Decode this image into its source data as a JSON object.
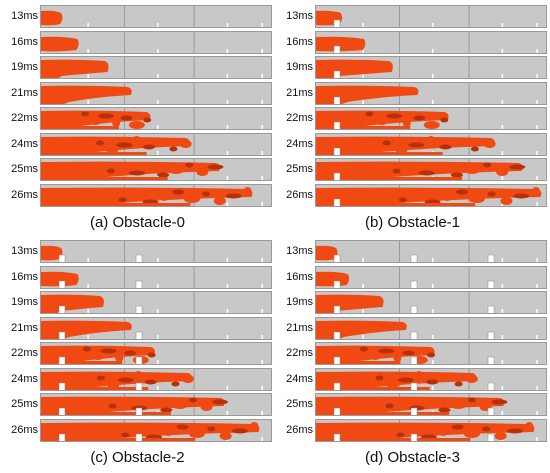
{
  "panels": [
    {
      "caption": "(a) Obstacle-0",
      "obstacles": 0,
      "times": [
        "13ms",
        "16ms",
        "19ms",
        "21ms",
        "22ms",
        "24ms",
        "25ms",
        "26ms"
      ],
      "flame_reach": [
        0.1,
        0.17,
        0.3,
        0.4,
        0.48,
        0.65,
        0.78,
        0.92
      ]
    },
    {
      "caption": "(b) Obstacle-1",
      "obstacles": 1,
      "times": [
        "13ms",
        "16ms",
        "19ms",
        "21ms",
        "22ms",
        "24ms",
        "25ms",
        "26ms"
      ],
      "flame_reach": [
        0.12,
        0.22,
        0.34,
        0.45,
        0.58,
        0.78,
        0.9,
        0.98
      ]
    },
    {
      "caption": "(c) Obstacle-2",
      "obstacles": 2,
      "times": [
        "13ms",
        "16ms",
        "19ms",
        "21ms",
        "22ms",
        "24ms",
        "25ms",
        "26ms"
      ],
      "flame_reach": [
        0.1,
        0.17,
        0.28,
        0.4,
        0.5,
        0.66,
        0.8,
        0.95
      ]
    },
    {
      "caption": "(d) Obstacle-3",
      "obstacles": 3,
      "times": [
        "13ms",
        "16ms",
        "19ms",
        "21ms",
        "22ms",
        "24ms",
        "25ms",
        "26ms"
      ],
      "flame_reach": [
        0.1,
        0.15,
        0.3,
        0.4,
        0.52,
        0.7,
        0.82,
        0.95
      ]
    }
  ],
  "colors": {
    "flame": "#f04a12",
    "flame_dark": "#b8300a",
    "channel": "#c8c8c8",
    "obstacle": "#ffffff"
  }
}
